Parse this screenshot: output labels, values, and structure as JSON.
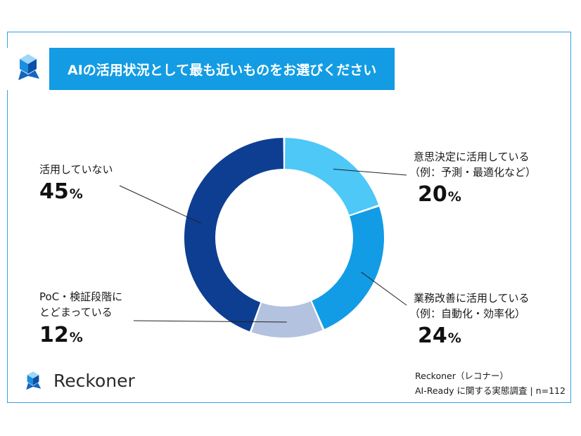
{
  "header": {
    "title": "AIの活用状況として最も近いものをお選びください"
  },
  "brand": {
    "name": "Reckoner"
  },
  "source": {
    "line1": "Reckoner（レコナー）",
    "line2": "AI-Ready に関する実態調査 | n=112"
  },
  "labels": {
    "decision": {
      "line1": "意思決定に活用している",
      "line2": "（例：予測・最適化など）",
      "number": "20",
      "unit": "%"
    },
    "operations": {
      "line1": "業務改善に活用している",
      "line2": "（例：自動化・効率化）",
      "number": "24",
      "unit": "%"
    },
    "poc": {
      "line1": "PoC・検証段階に",
      "line2": "とどまっている",
      "number": "12",
      "unit": "%"
    },
    "none": {
      "line1": "活用していない",
      "number": "45",
      "unit": "%"
    }
  },
  "colors": {
    "accent": "#139ce3",
    "frame": "#38a0dc",
    "decision": "#4dc8f7",
    "operations": "#129ce6",
    "poc": "#b3c2de",
    "none": "#0e3e92"
  },
  "chart_data": {
    "type": "pie",
    "categories": [
      "意思決定に活用している（例：予測・最適化など）",
      "業務改善に活用している（例：自動化・効率化）",
      "PoC・検証段階にとどまっている",
      "活用していない"
    ],
    "values": [
      20,
      24,
      12,
      45
    ],
    "start": "12 o'clock",
    "direction": "clockwise",
    "donut": true
  }
}
